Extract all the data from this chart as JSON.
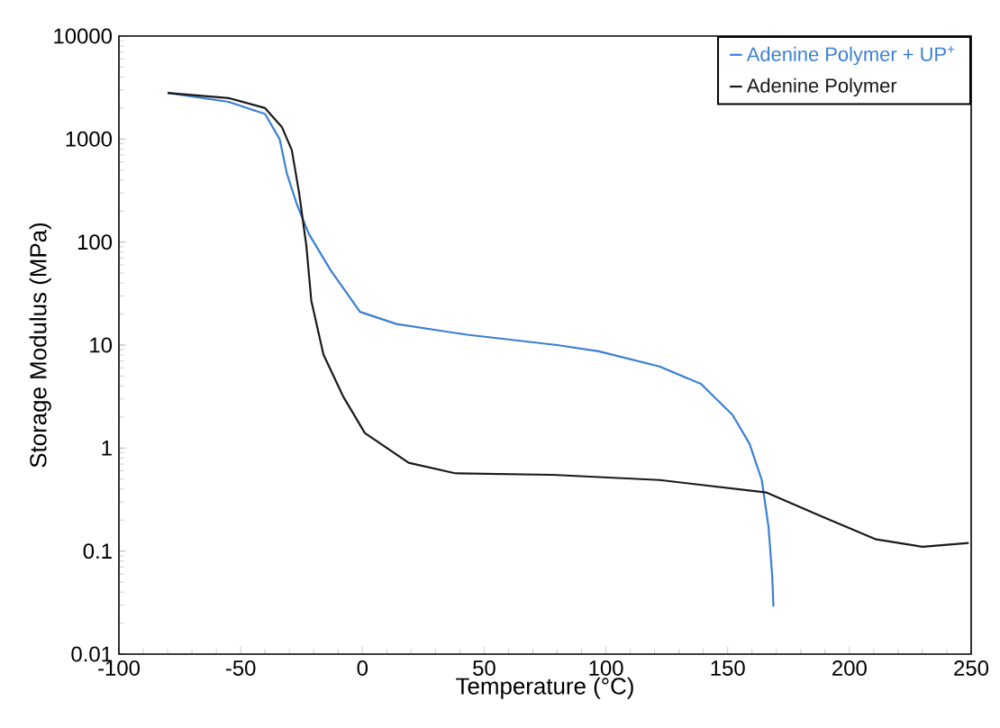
{
  "chart_data": {
    "type": "line",
    "xlabel": "Temperature (°C)",
    "ylabel": "Storage Modulus (MPa)",
    "xlim": [
      -100,
      250
    ],
    "xticks": [
      -100,
      -50,
      0,
      50,
      100,
      150,
      200,
      250
    ],
    "ylim": [
      0.01,
      10000
    ],
    "yticks": [
      0.01,
      0.1,
      1,
      10,
      100,
      1000,
      10000
    ],
    "log": "y",
    "legend": "top right",
    "grid": false,
    "marker": "none",
    "line_style": "solid",
    "series": [
      {
        "name": "Adenine Polymer + UP$^{+}$",
        "color": "#3a7fd5",
        "x": [
          -80,
          -55,
          -40,
          -34,
          -31,
          -27,
          -22,
          -13,
          -1,
          14,
          43,
          80,
          97,
          122,
          139,
          152,
          159,
          164,
          166.8,
          168.3,
          168.8
        ],
        "values": [
          2800,
          2300,
          1750,
          1000,
          460,
          235,
          120,
          53,
          21,
          16,
          12.6,
          10,
          8.7,
          6.2,
          4.2,
          2.1,
          1.1,
          0.49,
          0.17,
          0.057,
          0.029
        ]
      },
      {
        "name": "Adenine Polymer",
        "color": "#1a1a1a",
        "x": [
          -80,
          -55,
          -40,
          -33,
          -29,
          -26,
          -23,
          -21,
          -16,
          -8,
          1,
          19,
          38,
          78,
          122,
          166,
          188,
          211,
          230,
          249
        ],
        "values": [
          2800,
          2500,
          2000,
          1300,
          780,
          300,
          91,
          27,
          8.1,
          3.2,
          1.4,
          0.72,
          0.57,
          0.55,
          0.49,
          0.37,
          0.22,
          0.13,
          0.11,
          0.12
        ]
      }
    ]
  }
}
